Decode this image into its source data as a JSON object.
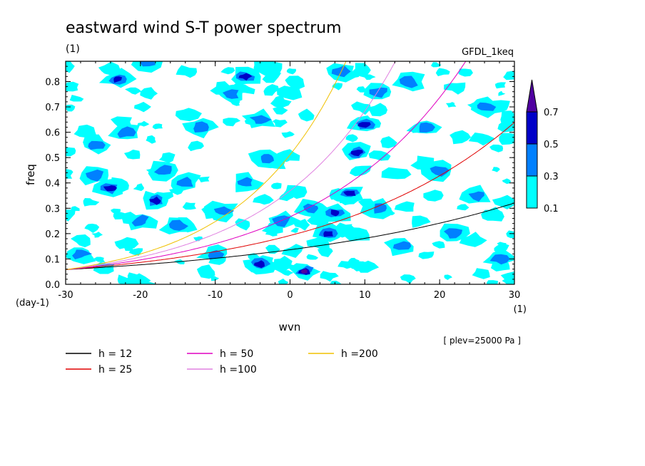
{
  "title": "eastward wind S-T power spectrum",
  "units_top": "(1)",
  "model": "GFDL_1keq",
  "plev": "[ plev=25000 Pa ]",
  "colors": {
    "level1": "#00ffff",
    "level2": "#0080ff",
    "level3": "#0000c8",
    "level4": "#5000a0",
    "h12": "#000000",
    "h25": "#e00000",
    "h50": "#e000c0",
    "h100": "#e080e0",
    "h200": "#f0c000"
  },
  "chart_data": {
    "type": "heatmap",
    "xlabel": "wvn",
    "xunit": "(1)",
    "ylabel": "freq",
    "yunit": "(day-1)",
    "xlim": [
      -30,
      30
    ],
    "ylim": [
      0,
      0.88
    ],
    "xticks": [
      -30,
      -20,
      -10,
      0,
      10,
      20,
      30
    ],
    "xtick_labels": [
      "-30",
      "-20",
      "-10",
      "0",
      "10",
      "20",
      "30"
    ],
    "yticks": [
      0,
      0.1,
      0.2,
      0.3,
      0.4,
      0.5,
      0.6,
      0.7,
      0.8
    ],
    "ytick_labels": [
      "0.0",
      "0.1",
      "0.2",
      "0.3",
      "0.4",
      "0.5",
      "0.6",
      "0.7",
      "0.8"
    ],
    "colorbar": {
      "levels": [
        0.1,
        0.3,
        0.5,
        0.7
      ],
      "labels": [
        "0.1",
        "0.3",
        "0.5",
        "0.7"
      ]
    },
    "dispersion_curves": [
      {
        "name": "h = 12",
        "h": 12
      },
      {
        "name": "h = 25",
        "h": 25
      },
      {
        "name": "h = 50",
        "h": 50
      },
      {
        "name": "h =100",
        "h": 100
      },
      {
        "name": "h =200",
        "h": 200
      }
    ],
    "blobs": [
      {
        "x": -26,
        "y": 0.55,
        "v": 0.3
      },
      {
        "x": -24,
        "y": 0.38,
        "v": 0.5
      },
      {
        "x": -18,
        "y": 0.33,
        "v": 0.5
      },
      {
        "x": -17,
        "y": 0.45,
        "v": 0.3
      },
      {
        "x": -23,
        "y": 0.81,
        "v": 0.5
      },
      {
        "x": -19,
        "y": 0.88,
        "v": 0.3
      },
      {
        "x": -26,
        "y": 0.43,
        "v": 0.3
      },
      {
        "x": -14,
        "y": 0.4,
        "v": 0.3
      },
      {
        "x": -20,
        "y": 0.25,
        "v": 0.3
      },
      {
        "x": -15,
        "y": 0.23,
        "v": 0.3
      },
      {
        "x": -12,
        "y": 0.62,
        "v": 0.3
      },
      {
        "x": -8,
        "y": 0.75,
        "v": 0.3
      },
      {
        "x": -6,
        "y": 0.82,
        "v": 0.5
      },
      {
        "x": -4,
        "y": 0.65,
        "v": 0.3
      },
      {
        "x": -3,
        "y": 0.5,
        "v": 0.3
      },
      {
        "x": -6,
        "y": 0.4,
        "v": 0.3
      },
      {
        "x": -9,
        "y": 0.29,
        "v": 0.3
      },
      {
        "x": -4,
        "y": 0.08,
        "v": 0.5
      },
      {
        "x": 2,
        "y": 0.05,
        "v": 0.7
      },
      {
        "x": 5,
        "y": 0.2,
        "v": 0.5
      },
      {
        "x": 6,
        "y": 0.28,
        "v": 0.5
      },
      {
        "x": 8,
        "y": 0.36,
        "v": 0.5
      },
      {
        "x": 9,
        "y": 0.52,
        "v": 0.5
      },
      {
        "x": 10,
        "y": 0.63,
        "v": 0.5
      },
      {
        "x": 7,
        "y": 0.84,
        "v": 0.3
      },
      {
        "x": 12,
        "y": 0.76,
        "v": 0.3
      },
      {
        "x": 16,
        "y": 0.8,
        "v": 0.3
      },
      {
        "x": 20,
        "y": 0.45,
        "v": 0.3
      },
      {
        "x": 25,
        "y": 0.35,
        "v": 0.3
      },
      {
        "x": 28,
        "y": 0.1,
        "v": 0.3
      },
      {
        "x": 22,
        "y": 0.2,
        "v": 0.3
      },
      {
        "x": 15,
        "y": 0.15,
        "v": 0.3
      },
      {
        "x": 18,
        "y": 0.62,
        "v": 0.3
      },
      {
        "x": 26,
        "y": 0.7,
        "v": 0.3
      },
      {
        "x": 3,
        "y": 0.3,
        "v": 0.3
      },
      {
        "x": -1,
        "y": 0.25,
        "v": 0.3
      },
      {
        "x": -28,
        "y": 0.12,
        "v": 0.3
      },
      {
        "x": -22,
        "y": 0.6,
        "v": 0.3
      },
      {
        "x": -10,
        "y": 0.12,
        "v": 0.3
      },
      {
        "x": 12,
        "y": 0.3,
        "v": 0.3
      }
    ]
  }
}
